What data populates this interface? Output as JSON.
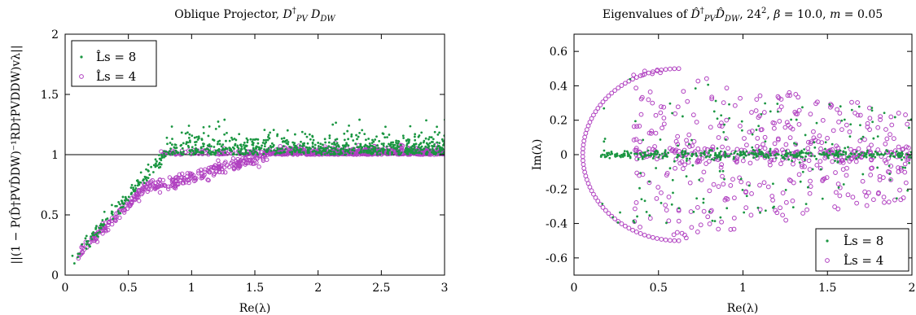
{
  "chart_data": [
    {
      "type": "scatter",
      "title": "Oblique Projector, D†PV DDW",
      "xlabel": "Re(λ)",
      "ylabel": "||(1 − P(D̂†PV D̂DW)−1 R D†PV DDW) vλ||",
      "xlim": [
        0,
        3
      ],
      "ylim": [
        0,
        2
      ],
      "xticks": [
        "0",
        "0.5",
        "1",
        "1.5",
        "2",
        "2.5",
        "3"
      ],
      "yticks": [
        "0",
        "0.5",
        "1",
        "1.5",
        "2"
      ],
      "reference_line": 1,
      "legend_position": "top-left",
      "series": [
        {
          "name": "L̂s = 8",
          "color": "#1a9641",
          "marker": "dot",
          "description": "rises from ~0.08 near Re=0.05 to ~1 at Re≈1, then scatters 1.0–1.28 above the line",
          "points": [
            [
              0.05,
              0.08
            ],
            [
              0.1,
              0.14
            ],
            [
              0.15,
              0.2
            ],
            [
              0.2,
              0.26
            ],
            [
              0.25,
              0.33
            ],
            [
              0.3,
              0.39
            ],
            [
              0.35,
              0.46
            ],
            [
              0.4,
              0.53
            ],
            [
              0.45,
              0.6
            ],
            [
              0.5,
              0.66
            ],
            [
              0.55,
              0.72
            ],
            [
              0.6,
              0.78
            ],
            [
              0.65,
              0.84
            ],
            [
              0.7,
              0.9
            ],
            [
              0.75,
              0.95
            ],
            [
              0.8,
              0.99
            ],
            [
              0.9,
              1.03
            ],
            [
              1.0,
              1.06
            ],
            [
              1.2,
              1.1
            ],
            [
              1.4,
              1.15
            ],
            [
              1.57,
              1.28
            ],
            [
              1.8,
              1.18
            ],
            [
              2.0,
              1.2
            ],
            [
              2.2,
              1.22
            ],
            [
              2.4,
              1.18
            ],
            [
              2.6,
              1.25
            ],
            [
              2.8,
              1.2
            ],
            [
              3.0,
              1.15
            ]
          ]
        },
        {
          "name": "L̂s = 4",
          "color": "#b040c0",
          "marker": "circle",
          "description": "rises from ~0.08 near Re=0.05, lags below L̂s=8 between 0.3 and 1.6, then hugs the line at 1 with small excursions to ~1.15",
          "points": [
            [
              0.05,
              0.08
            ],
            [
              0.1,
              0.13
            ],
            [
              0.15,
              0.19
            ],
            [
              0.2,
              0.25
            ],
            [
              0.25,
              0.31
            ],
            [
              0.3,
              0.37
            ],
            [
              0.35,
              0.43
            ],
            [
              0.4,
              0.49
            ],
            [
              0.45,
              0.55
            ],
            [
              0.5,
              0.6
            ],
            [
              0.55,
              0.64
            ],
            [
              0.6,
              0.67
            ],
            [
              0.7,
              0.72
            ],
            [
              0.8,
              0.77
            ],
            [
              0.9,
              0.82
            ],
            [
              1.0,
              0.86
            ],
            [
              1.1,
              0.9
            ],
            [
              1.2,
              0.93
            ],
            [
              1.3,
              0.95
            ],
            [
              1.4,
              0.97
            ],
            [
              1.5,
              0.98
            ],
            [
              1.6,
              0.99
            ],
            [
              1.8,
              1.0
            ],
            [
              2.0,
              1.03
            ],
            [
              2.5,
              1.08
            ],
            [
              3.0,
              1.1
            ]
          ]
        }
      ]
    },
    {
      "type": "scatter",
      "title": "Eigenvalues of D̂†PV D̂DW, 24², β = 10.0, m = 0.05",
      "xlabel": "Re(λ)",
      "ylabel": "Im(λ)",
      "xlim": [
        0,
        2
      ],
      "ylim": [
        -0.7,
        0.7
      ],
      "xticks": [
        "0",
        "0.5",
        "1",
        "1.5",
        "2"
      ],
      "yticks": [
        "-0.6",
        "-0.4",
        "-0.2",
        "0",
        "0.2",
        "0.4",
        "0.6"
      ],
      "legend_position": "bottom-right",
      "series": [
        {
          "name": "L̂s = 8",
          "color": "#1a9641",
          "marker": "dot",
          "description": "band along Im≈0 from Re 0.15 to 2 plus a sparser cloud reaching ±0.45"
        },
        {
          "name": "L̂s = 4",
          "color": "#b040c0",
          "marker": "circle",
          "description": "circle-like envelope from Re≈0.05 through Im ±0.5 near Re 0.6, filling a wide cloud toward Re=2"
        }
      ]
    }
  ]
}
